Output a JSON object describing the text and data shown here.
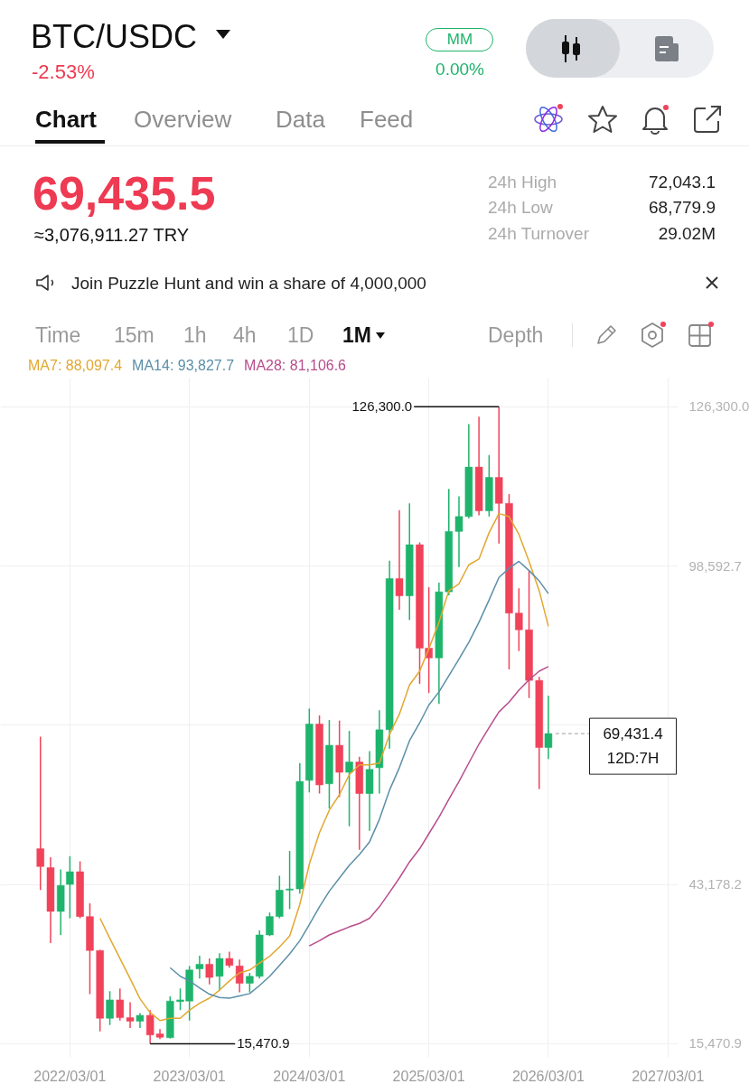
{
  "chart_data": {
    "type": "candlestick",
    "title": "BTC/USDC",
    "subtitle": "-2.53%",
    "annotations": [
      "MM",
      "0.00%",
      "Chart",
      "Overview",
      "Data",
      "Feed",
      "69,435.5",
      "≈3,076,911.27 TRY",
      "24h High",
      "72,043.1",
      "24h Low",
      "68,779.9",
      "24h Turnover",
      "29.02M",
      "Join Puzzle Hunt and win a share of 4,000,000",
      "Time",
      "15m",
      "1h",
      "4h",
      "1D",
      "1M",
      "Depth",
      "12D:7H",
      {
        "text": "126,300.0",
        "x": "2025-10",
        "y": 126300
      },
      {
        "text": "15,470.9",
        "x": "2022-11",
        "y": 15470.9
      }
    ],
    "x": [
      "2021-12",
      "2022-01",
      "2022-02",
      "2022-03",
      "2022-04",
      "2022-05",
      "2022-06",
      "2022-07",
      "2022-08",
      "2022-09",
      "2022-10",
      "2022-11",
      "2022-12",
      "2023-01",
      "2023-02",
      "2023-03",
      "2023-04",
      "2023-05",
      "2023-06",
      "2023-07",
      "2023-08",
      "2023-09",
      "2023-10",
      "2023-11",
      "2023-12",
      "2024-01",
      "2024-02",
      "2024-03",
      "2024-04",
      "2024-05",
      "2024-06",
      "2024-07",
      "2024-08",
      "2024-09",
      "2024-10",
      "2024-11",
      "2024-12",
      "2025-01",
      "2025-02",
      "2025-03",
      "2025-04",
      "2025-05",
      "2025-06",
      "2025-07",
      "2025-08",
      "2025-09",
      "2025-10",
      "2025-11",
      "2025-12",
      "2026-01",
      "2026-02",
      "2026-03"
    ],
    "ohlc": [
      [
        49400,
        68900,
        42200,
        46300
      ],
      [
        46100,
        47900,
        33000,
        38500
      ],
      [
        38500,
        45800,
        34400,
        43000
      ],
      [
        43200,
        48100,
        37300,
        45400
      ],
      [
        45400,
        47200,
        37300,
        37600
      ],
      [
        37600,
        39900,
        24100,
        31700
      ],
      [
        31700,
        31800,
        17600,
        19900
      ],
      [
        19900,
        24600,
        18700,
        23100
      ],
      [
        23100,
        25100,
        19500,
        20000
      ],
      [
        20000,
        22700,
        18200,
        19400
      ],
      [
        19400,
        20800,
        18200,
        20400
      ],
      [
        20400,
        21300,
        15470.9,
        17000
      ],
      [
        17200,
        18000,
        16300,
        16600
      ],
      [
        16500,
        23700,
        16400,
        22900
      ],
      [
        22800,
        25100,
        21300,
        23100
      ],
      [
        22900,
        29000,
        19500,
        28300
      ],
      [
        28500,
        30800,
        26800,
        29300
      ],
      [
        29300,
        30300,
        25800,
        27000
      ],
      [
        27200,
        31200,
        24800,
        30300
      ],
      [
        30300,
        31500,
        28700,
        29100
      ],
      [
        29000,
        30100,
        24400,
        26000
      ],
      [
        26000,
        27800,
        24400,
        27200
      ],
      [
        27200,
        35200,
        26800,
        34400
      ],
      [
        34400,
        38300,
        34200,
        37600
      ],
      [
        37600,
        44700,
        37300,
        42200
      ],
      [
        42200,
        49000,
        38900,
        42400
      ],
      [
        42400,
        64300,
        41600,
        61100
      ],
      [
        61300,
        73800,
        59200,
        71100
      ],
      [
        71100,
        72600,
        59000,
        60500
      ],
      [
        60700,
        71800,
        56400,
        67400
      ],
      [
        67400,
        71700,
        58400,
        62700
      ],
      [
        62700,
        69900,
        53300,
        64500
      ],
      [
        64500,
        65400,
        49200,
        59000
      ],
      [
        59000,
        66400,
        52500,
        63200
      ],
      [
        63500,
        73500,
        59000,
        70100
      ],
      [
        70100,
        99500,
        66800,
        96400
      ],
      [
        96400,
        108300,
        91000,
        93400
      ],
      [
        93400,
        109500,
        89200,
        102300
      ],
      [
        102300,
        102700,
        78100,
        84300
      ],
      [
        84300,
        94900,
        76500,
        82600
      ],
      [
        82600,
        95700,
        74600,
        94100
      ],
      [
        94100,
        112000,
        93500,
        104600
      ],
      [
        104600,
        110700,
        98400,
        107200
      ],
      [
        107200,
        123300,
        106900,
        115800
      ],
      [
        115800,
        124600,
        107400,
        108200
      ],
      [
        108200,
        117900,
        107200,
        114000
      ],
      [
        114000,
        126300,
        102500,
        109500
      ],
      [
        109500,
        111100,
        80600,
        90400
      ],
      [
        90400,
        94700,
        83800,
        87500
      ],
      [
        87500,
        97800,
        75600,
        78700
      ],
      [
        78700,
        79300,
        59800,
        67000
      ],
      [
        67000,
        76000,
        65000,
        69431.4
      ]
    ],
    "colors": [
      "#f0435a",
      "#f0435a",
      "#1fb46c",
      "#1fb46c",
      "#f0435a",
      "#f0435a",
      "#f0435a",
      "#1fb46c",
      "#f0435a",
      "#f0435a",
      "#1fb46c",
      "#f0435a",
      "#f0435a",
      "#1fb46c",
      "#1fb46c",
      "#1fb46c",
      "#1fb46c",
      "#f0435a",
      "#1fb46c",
      "#f0435a",
      "#f0435a",
      "#1fb46c",
      "#1fb46c",
      "#1fb46c",
      "#1fb46c",
      "#1fb46c",
      "#1fb46c",
      "#1fb46c",
      "#f0435a",
      "#1fb46c",
      "#f0435a",
      "#1fb46c",
      "#f0435a",
      "#1fb46c",
      "#1fb46c",
      "#1fb46c",
      "#f0435a",
      "#1fb46c",
      "#f0435a",
      "#f0435a",
      "#1fb46c",
      "#1fb46c",
      "#1fb46c",
      "#1fb46c",
      "#f0435a",
      "#1fb46c",
      "#f0435a",
      "#f0435a",
      "#f0435a",
      "#f0435a",
      "#f0435a",
      "#1fb46c"
    ],
    "series": [
      {
        "name": "MA7: 88,097.4",
        "type": "line",
        "color": "#e2a72e",
        "values": [
          null,
          null,
          null,
          null,
          null,
          null,
          37300,
          33800,
          30300,
          26800,
          23300,
          20900,
          19500,
          19900,
          19900,
          21300,
          22500,
          23400,
          24800,
          26400,
          27800,
          28300,
          29500,
          30700,
          32300,
          34200,
          39700,
          46700,
          52200,
          56100,
          58800,
          62300,
          64000,
          64000,
          64300,
          69300,
          72800,
          77900,
          80300,
          84200,
          88800,
          94300,
          95500,
          98800,
          99800,
          104400,
          107700,
          107200,
          104100,
          99400,
          94300,
          88100
        ]
      },
      {
        "name": "MA14: 93,827.7",
        "type": "line",
        "color": "#5b8fa8",
        "values": [
          null,
          null,
          null,
          null,
          null,
          null,
          null,
          null,
          null,
          null,
          null,
          null,
          null,
          28700,
          27200,
          26400,
          25200,
          24100,
          23500,
          23400,
          23800,
          24200,
          25600,
          27200,
          29100,
          31100,
          33400,
          36200,
          39300,
          42000,
          44300,
          46500,
          48400,
          50600,
          54500,
          59600,
          63500,
          68200,
          71300,
          74400,
          76700,
          79500,
          82400,
          85300,
          88800,
          92700,
          96600,
          98200,
          99400,
          97800,
          96000,
          93800
        ]
      },
      {
        "name": "MA28: 81,106.6",
        "type": "line",
        "color": "#b84d8c",
        "values": [
          null,
          null,
          null,
          null,
          null,
          null,
          null,
          null,
          null,
          null,
          null,
          null,
          null,
          null,
          null,
          null,
          null,
          null,
          null,
          null,
          null,
          null,
          null,
          null,
          null,
          null,
          null,
          32500,
          33400,
          34400,
          35100,
          35800,
          36400,
          37300,
          39300,
          41800,
          44300,
          47100,
          49400,
          52000,
          54900,
          58000,
          61100,
          64300,
          67600,
          70500,
          73200,
          74900,
          77000,
          78800,
          80300,
          81100
        ]
      }
    ],
    "xlim": [
      "2021-08-01",
      "2027-04-01"
    ],
    "ylim": [
      13100,
      131300
    ],
    "xticks": [
      {
        "value": "2022-03-01",
        "label": "2022/03/01"
      },
      {
        "value": "2023-03-01",
        "label": "2023/03/01"
      },
      {
        "value": "2024-03-01",
        "label": "2024/03/01"
      },
      {
        "value": "2025-03-01",
        "label": "2025/03/01"
      },
      {
        "value": "2026-03-01",
        "label": "2026/03/01"
      },
      {
        "value": "2027-03-01",
        "label": "2027/03/01"
      }
    ],
    "yticks": [
      {
        "value": 126300,
        "label": "126,300.0"
      },
      {
        "value": 98592.7,
        "label": "98,592.7"
      },
      {
        "value": 70885.4,
        "label": null
      },
      {
        "value": 43178.2,
        "label": "43,178.2"
      },
      {
        "value": 15470.9,
        "label": "15,470.9"
      }
    ],
    "grid": true,
    "legend": "top left",
    "ref_lines": [
      {
        "axis": "y",
        "value": 69431.4,
        "label": "69,431.4",
        "color": "#9e9e9e",
        "line_style": "dashed"
      }
    ]
  }
}
